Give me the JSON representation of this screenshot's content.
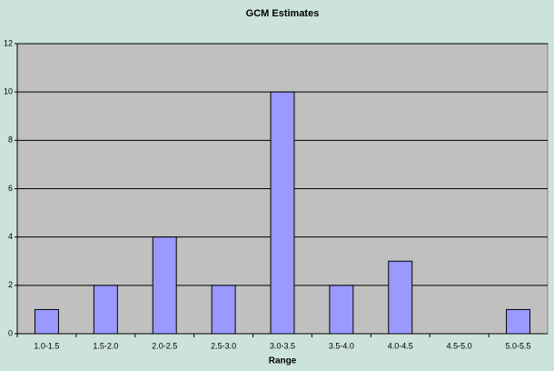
{
  "chart_data": {
    "type": "bar",
    "title": "GCM Estimates",
    "x_label": "Range",
    "categories": [
      "1.0-1.5",
      "1.5-2.0",
      "2.0-2.5",
      "2.5-3.0",
      "3.0-3.5",
      "3.5-4.0",
      "4.0-4.5",
      "4.5-5.0",
      "5.0-5.5"
    ],
    "values": [
      1,
      2,
      4,
      2,
      10,
      2,
      3,
      0,
      1
    ],
    "color": "#9999ff",
    "ylim": [
      0,
      12
    ],
    "yticks": [
      0,
      2,
      4,
      6,
      8,
      10,
      12
    ],
    "grid": true
  }
}
